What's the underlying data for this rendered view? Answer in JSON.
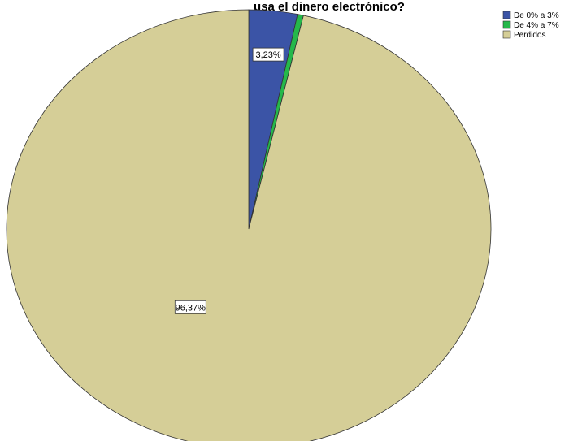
{
  "chart_data": {
    "type": "pie",
    "title": "usa el dinero electrónico?",
    "categories": [
      "De 0% a 3%",
      "De 4% a 7%",
      "Perdidos"
    ],
    "values": [
      3.23,
      0.4,
      96.37
    ],
    "data_labels": [
      "3,23%",
      "",
      "96,37%"
    ],
    "colors": [
      "#3b54a6",
      "#25b84a",
      "#d5ce97"
    ],
    "legend_placement": "top-right",
    "start_angle_deg": 0,
    "direction": "clockwise"
  }
}
